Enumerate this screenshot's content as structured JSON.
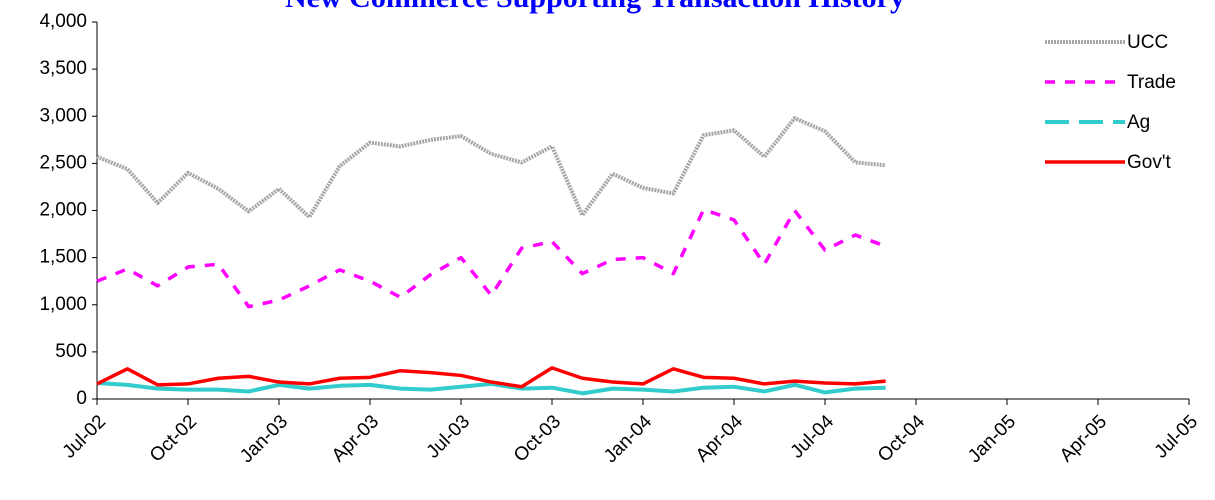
{
  "chart_data": {
    "type": "line",
    "title": "New Commerce Supporting Transaction History",
    "x": [
      "Jul-02",
      "Aug-02",
      "Sep-02",
      "Oct-02",
      "Nov-02",
      "Dec-02",
      "Jan-03",
      "Feb-03",
      "Mar-03",
      "Apr-03",
      "May-03",
      "Jun-03",
      "Jul-03",
      "Aug-03",
      "Sep-03",
      "Oct-03",
      "Nov-03",
      "Dec-03",
      "Jan-04",
      "Feb-04",
      "Mar-04",
      "Apr-04",
      "May-04",
      "Jun-04",
      "Jul-04",
      "Aug-04",
      "Sep-04"
    ],
    "xlim": [
      "Jul-02",
      "Jul-05"
    ],
    "xticks": [
      "Jul-02",
      "Oct-02",
      "Jan-03",
      "Apr-03",
      "Jul-03",
      "Oct-03",
      "Jan-04",
      "Apr-04",
      "Jul-04",
      "Oct-04",
      "Jan-05",
      "Apr-05",
      "Jul-05"
    ],
    "ylim": [
      0,
      4000
    ],
    "yticks": [
      0,
      500,
      {
        "value": 1000,
        "label": "1,000"
      },
      {
        "value": 1500,
        "label": "1,500"
      },
      {
        "value": 2000,
        "label": "2,000"
      },
      {
        "value": 2500,
        "label": "2,500"
      },
      {
        "value": 3000,
        "label": "3,000"
      },
      {
        "value": 3500,
        "label": "3,500"
      },
      {
        "value": 4000,
        "label": "4,000"
      }
    ],
    "grid": false,
    "legend": "upper right",
    "series": [
      {
        "name": "UCC",
        "color": "#a6a6a6",
        "values": [
          2570,
          2440,
          2080,
          2400,
          2230,
          1990,
          2230,
          1930,
          2470,
          2720,
          2680,
          2750,
          2790,
          2600,
          2510,
          2680,
          1950,
          2390,
          2240,
          2180,
          2800,
          2850,
          2570,
          2980,
          2840,
          2510,
          2480
        ]
      },
      {
        "name": "Trade",
        "color": "#ff00ff",
        "values": [
          1250,
          1380,
          1200,
          1400,
          1430,
          980,
          1050,
          1200,
          1370,
          1250,
          1080,
          1320,
          1500,
          1100,
          1600,
          1670,
          1330,
          1480,
          1500,
          1330,
          2010,
          1900,
          1430,
          2000,
          1580,
          1740,
          1620
        ]
      },
      {
        "name": "Ag",
        "color": "#33cccc",
        "values": [
          170,
          150,
          110,
          100,
          100,
          80,
          150,
          110,
          140,
          150,
          110,
          100,
          130,
          160,
          110,
          120,
          60,
          110,
          100,
          80,
          120,
          130,
          80,
          150,
          70,
          110,
          120
        ]
      },
      {
        "name": "Gov't",
        "color": "#ff0000",
        "values": [
          160,
          320,
          150,
          160,
          220,
          240,
          180,
          160,
          220,
          230,
          300,
          280,
          250,
          180,
          130,
          330,
          220,
          180,
          160,
          320,
          230,
          220,
          160,
          190,
          170,
          160,
          190
        ]
      }
    ]
  }
}
